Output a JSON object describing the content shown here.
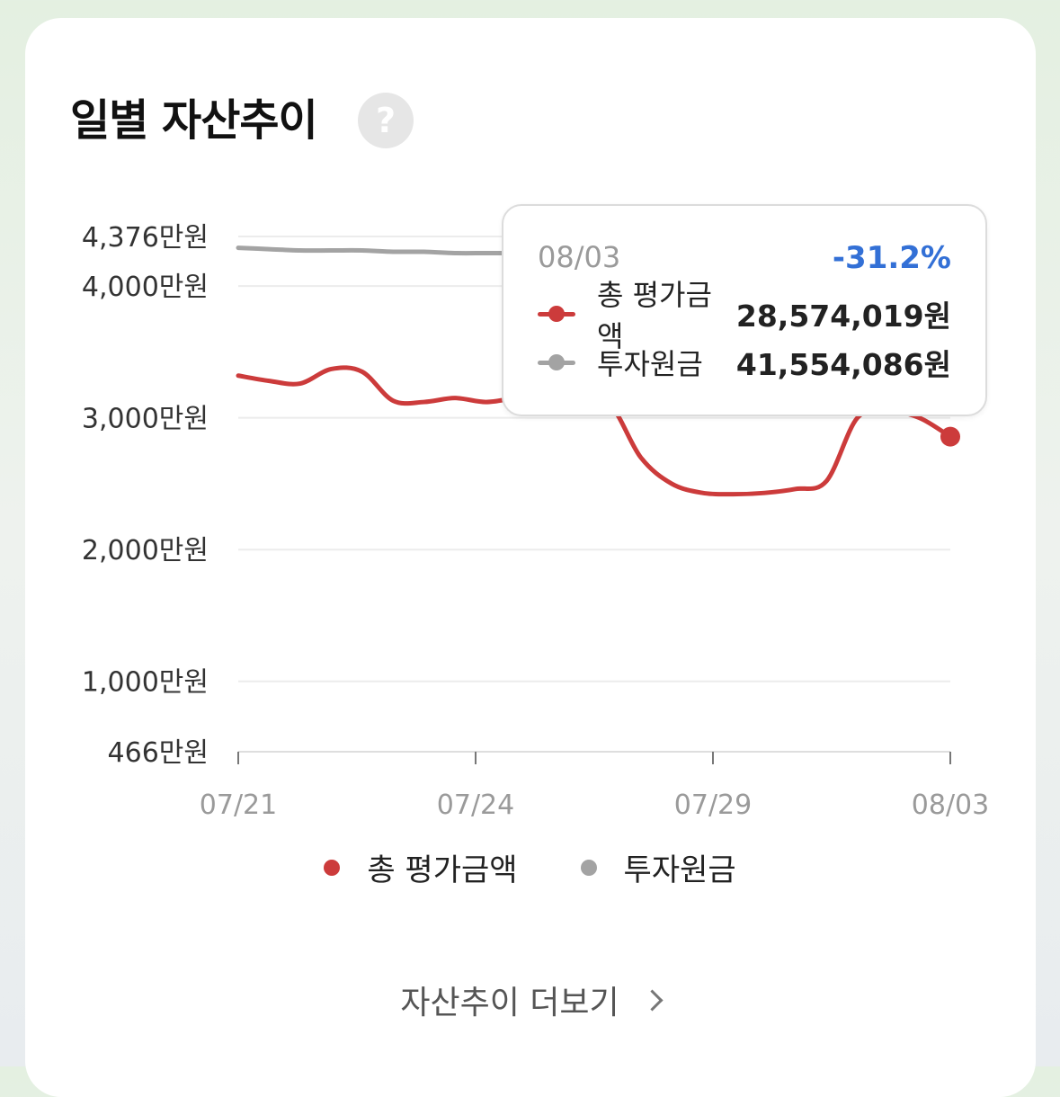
{
  "title": "일별 자산추이",
  "help_icon": "question-icon",
  "help_glyph": "?",
  "colors": {
    "total": "#cc3b3b",
    "principal": "#a3a3a3",
    "grid": "#ececec",
    "change_negative": "#3370d6"
  },
  "tooltip": {
    "date": "08/03",
    "change": "-31.2%",
    "rows": [
      {
        "label": "총 평가금액",
        "value": "28,574,019원"
      },
      {
        "label": "투자원금",
        "value": "41,554,086원"
      }
    ]
  },
  "more_link": "자산추이 더보기",
  "chart_data": {
    "type": "line",
    "y_ticks": [
      {
        "value": 466,
        "label": "466만원"
      },
      {
        "value": 1000,
        "label": "1,000만원"
      },
      {
        "value": 2000,
        "label": "2,000만원"
      },
      {
        "value": 3000,
        "label": "3,000만원"
      },
      {
        "value": 4000,
        "label": "4,000만원"
      },
      {
        "value": 4376,
        "label": "4,376만원"
      }
    ],
    "ylim": [
      466,
      4376
    ],
    "x_ticks": [
      "07/21",
      "07/24",
      "07/29",
      "08/03"
    ],
    "grid": true,
    "legend_position": "bottom",
    "series": [
      {
        "name": "총 평가금액",
        "values": [
          3320,
          3280,
          3260,
          3370,
          3350,
          3130,
          3120,
          3150,
          3120,
          3150,
          3160,
          3100,
          3100,
          2700,
          2500,
          2430,
          2420,
          2430,
          2460,
          2520,
          3000,
          3050,
          3000,
          2857
        ]
      },
      {
        "name": "투자원금",
        "values": [
          4290,
          4280,
          4270,
          4270,
          4270,
          4260,
          4260,
          4250,
          4250,
          4250,
          4250,
          4240,
          4230,
          4200,
          4170,
          4160,
          4160,
          4160,
          4160,
          4160,
          4160,
          4160,
          4160,
          4155
        ]
      }
    ]
  }
}
